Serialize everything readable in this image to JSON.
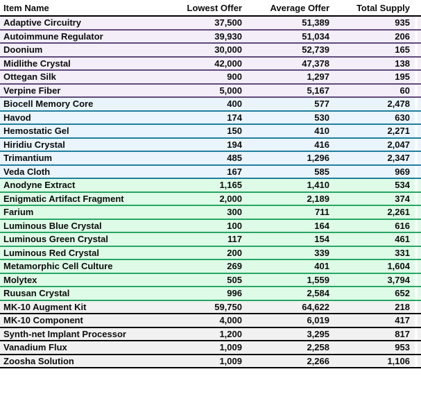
{
  "table": {
    "columns": [
      {
        "key": "name",
        "label": "Item Name"
      },
      {
        "key": "lowest",
        "label": "Lowest Offer"
      },
      {
        "key": "average",
        "label": "Average Offer"
      },
      {
        "key": "supply",
        "label": "Total Supply"
      }
    ],
    "header_border_color": "#000000",
    "groups": [
      {
        "name": "purple-group",
        "bg": "#F3EEF8",
        "border": "#604A7B",
        "rows": [
          {
            "name": "Adaptive Circuitry",
            "lowest": "37,500",
            "average": "51,389",
            "supply": "935"
          },
          {
            "name": "Autoimmune Regulator",
            "lowest": "39,930",
            "average": "51,034",
            "supply": "206"
          },
          {
            "name": "Doonium",
            "lowest": "30,000",
            "average": "52,739",
            "supply": "165"
          },
          {
            "name": "Midlithe Crystal",
            "lowest": "42,000",
            "average": "47,378",
            "supply": "138"
          },
          {
            "name": "Ottegan Silk",
            "lowest": "900",
            "average": "1,297",
            "supply": "195"
          },
          {
            "name": "Verpine Fiber",
            "lowest": "5,000",
            "average": "5,167",
            "supply": "60"
          }
        ]
      },
      {
        "name": "blue-group",
        "bg": "#E9F4FC",
        "border": "#217E9E",
        "rows": [
          {
            "name": "Biocell Memory Core",
            "lowest": "400",
            "average": "577",
            "supply": "2,478"
          },
          {
            "name": "Havod",
            "lowest": "174",
            "average": "530",
            "supply": "630"
          },
          {
            "name": "Hemostatic Gel",
            "lowest": "150",
            "average": "410",
            "supply": "2,271"
          },
          {
            "name": "Hiridiu Crystal",
            "lowest": "194",
            "average": "416",
            "supply": "2,047"
          },
          {
            "name": "Trimantium",
            "lowest": "485",
            "average": "1,296",
            "supply": "2,347"
          },
          {
            "name": "Veda Cloth",
            "lowest": "167",
            "average": "585",
            "supply": "969"
          }
        ]
      },
      {
        "name": "green-group",
        "bg": "#DDFBE6",
        "border": "#28A564",
        "rows": [
          {
            "name": "Anodyne Extract",
            "lowest": "1,165",
            "average": "1,410",
            "supply": "534"
          },
          {
            "name": "Enigmatic Artifact Fragment",
            "lowest": "2,000",
            "average": "2,189",
            "supply": "374"
          },
          {
            "name": "Farium",
            "lowest": "300",
            "average": "711",
            "supply": "2,261"
          },
          {
            "name": "Luminous Blue Crystal",
            "lowest": "100",
            "average": "164",
            "supply": "616"
          },
          {
            "name": "Luminous Green Crystal",
            "lowest": "117",
            "average": "154",
            "supply": "461"
          },
          {
            "name": "Luminous Red Crystal",
            "lowest": "200",
            "average": "339",
            "supply": "331"
          },
          {
            "name": "Metamorphic Cell Culture",
            "lowest": "269",
            "average": "401",
            "supply": "1,604"
          },
          {
            "name": "Molytex",
            "lowest": "505",
            "average": "1,559",
            "supply": "3,794"
          },
          {
            "name": "Ruusan Crystal",
            "lowest": "996",
            "average": "2,584",
            "supply": "652"
          }
        ]
      },
      {
        "name": "gray-group",
        "bg": "#F1F1F1",
        "border": "#000000",
        "rows": [
          {
            "name": "MK-10 Augment Kit",
            "lowest": "59,750",
            "average": "64,622",
            "supply": "218"
          },
          {
            "name": "MK-10 Component",
            "lowest": "4,000",
            "average": "6,019",
            "supply": "417"
          },
          {
            "name": "Synth-net Implant Processor",
            "lowest": "1,200",
            "average": "3,295",
            "supply": "817"
          },
          {
            "name": "Vanadium Flux",
            "lowest": "1,009",
            "average": "2,258",
            "supply": "953"
          },
          {
            "name": "Zoosha Solution",
            "lowest": "1,009",
            "average": "2,266",
            "supply": "1,106"
          }
        ]
      }
    ]
  }
}
